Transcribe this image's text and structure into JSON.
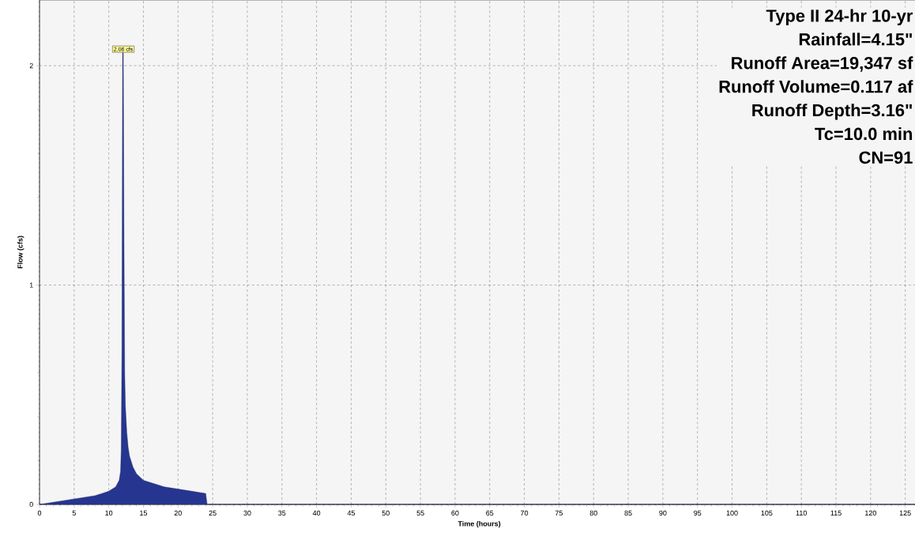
{
  "chart_data": {
    "type": "area",
    "xlabel": "Time  (hours)",
    "ylabel": "Flow  (cfs)",
    "series": [
      {
        "color": "#26358f",
        "x": [
          0,
          2,
          4,
          6,
          8,
          9,
          10,
          10.5,
          11,
          11.5,
          11.7,
          11.8,
          11.9,
          12.0,
          12.1,
          12.2,
          12.3,
          12.4,
          12.6,
          12.8,
          13,
          13.5,
          14,
          15,
          16,
          18,
          20,
          22,
          24,
          24.2,
          25,
          127
        ],
        "values": [
          0,
          0.01,
          0.02,
          0.03,
          0.04,
          0.05,
          0.06,
          0.07,
          0.08,
          0.11,
          0.15,
          0.25,
          0.7,
          2.06,
          2.06,
          1.2,
          0.6,
          0.45,
          0.33,
          0.26,
          0.22,
          0.17,
          0.14,
          0.11,
          0.1,
          0.08,
          0.07,
          0.06,
          0.05,
          0,
          0,
          0
        ]
      }
    ],
    "xlim": [
      0,
      127
    ],
    "ylim": [
      0,
      2.3
    ],
    "xticks": [
      0,
      5,
      10,
      15,
      20,
      25,
      30,
      35,
      40,
      45,
      50,
      55,
      60,
      65,
      70,
      75,
      80,
      85,
      90,
      95,
      100,
      105,
      110,
      115,
      120,
      125
    ],
    "yticks": [
      0,
      1,
      2
    ],
    "grid": true,
    "line_style": "solid",
    "annotations": [
      {
        "text": "2.06 cfs",
        "x": 12.1,
        "y": 2.06
      },
      "Type II 24-hr 10-yr",
      "Rainfall=4.15\"",
      "Runoff Area=19,347 sf",
      "Runoff Volume=0.117 af",
      "Runoff Depth=3.16\"",
      "Tc=10.0 min",
      "CN=91"
    ]
  }
}
